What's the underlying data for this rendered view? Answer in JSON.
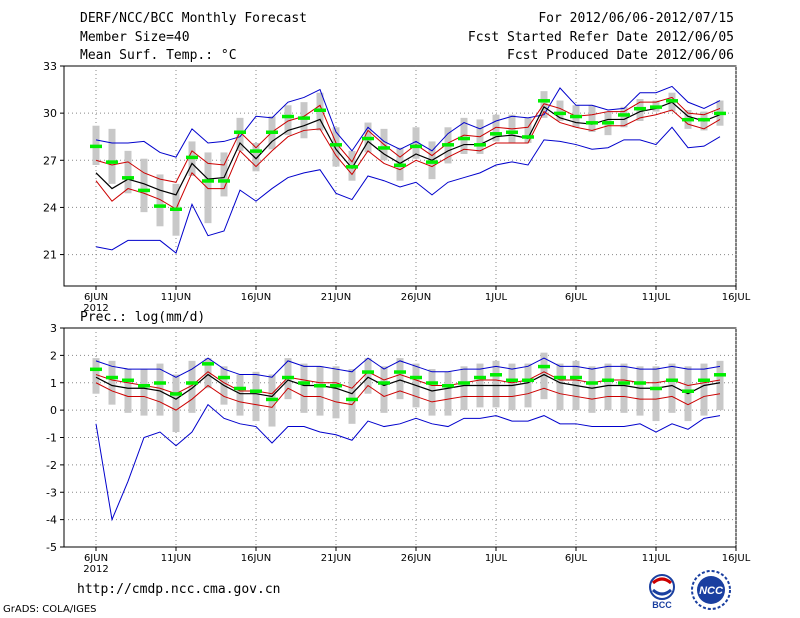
{
  "header": {
    "title": "DERF/NCC/BCC Monthly Forecast",
    "member_size": "Member Size=40",
    "variable": "Mean Surf. Temp.: °C",
    "period": "For 2012/06/06-2012/07/15",
    "refer_date": "Fcst Started Refer Date 2012/06/05",
    "produced_date": "Fcst Produced Date 2012/06/06"
  },
  "footer": {
    "url": "http://cmdp.ncc.cma.gov.cn",
    "grads": "GrADS: COLA/IGES",
    "logo_left_text": "BCC",
    "logo_right_text": "NCC"
  },
  "colors": {
    "envelope": "#0000cc",
    "spread": "#cc0000",
    "mean": "#000000",
    "median": "#00ee00",
    "box": "#c8c8c8"
  },
  "chart_data": [
    {
      "type": "line",
      "title": "Mean Surf. Temp.: °C",
      "ylim": [
        19,
        33
      ],
      "yticks": [
        21,
        24,
        27,
        30,
        33
      ],
      "grid": true,
      "x_tick_labels": [
        "6JUN",
        "11JUN",
        "16JUN",
        "21JUN",
        "26JUN",
        "1JUL",
        "6JUL",
        "11JUL",
        "16JUL"
      ],
      "x_year_label": "2012",
      "x": [
        1,
        2,
        3,
        4,
        5,
        6,
        7,
        8,
        9,
        10,
        11,
        12,
        13,
        14,
        15,
        16,
        17,
        18,
        19,
        20,
        21,
        22,
        23,
        24,
        25,
        26,
        27,
        28,
        29,
        30,
        31,
        32,
        33,
        34,
        35,
        36,
        37,
        38,
        39,
        40
      ],
      "series": [
        {
          "name": "max",
          "values": [
            28.3,
            28.1,
            28.1,
            28.2,
            27.5,
            27.2,
            29.0,
            28.1,
            28.2,
            28.5,
            29.8,
            29.7,
            30.7,
            31.0,
            31.5,
            28.8,
            27.6,
            29.1,
            28.2,
            27.7,
            28.2,
            27.6,
            28.7,
            29.4,
            29.0,
            29.5,
            29.8,
            29.7,
            29.9,
            31.6,
            30.5,
            30.5,
            30.2,
            30.3,
            31.3,
            31.3,
            31.7,
            30.7,
            30.3,
            30.8
          ]
        },
        {
          "name": "upper",
          "values": [
            27.0,
            26.7,
            26.9,
            26.2,
            25.8,
            25.6,
            27.6,
            26.8,
            26.7,
            28.8,
            27.8,
            28.8,
            29.5,
            29.8,
            30.5,
            28.1,
            26.9,
            28.9,
            28.0,
            27.2,
            28.0,
            27.3,
            28.1,
            28.6,
            28.5,
            29.1,
            29.0,
            29.1,
            30.6,
            30.3,
            29.8,
            29.9,
            30.1,
            30.1,
            30.7,
            30.7,
            31.0,
            30.0,
            29.9,
            30.3
          ]
        },
        {
          "name": "mean",
          "values": [
            26.2,
            25.2,
            25.8,
            25.5,
            25.1,
            24.8,
            26.8,
            25.8,
            25.9,
            28.1,
            27.1,
            28.2,
            28.9,
            29.2,
            29.6,
            27.7,
            26.5,
            28.2,
            27.4,
            26.8,
            27.4,
            27.0,
            27.6,
            28.0,
            28.0,
            28.5,
            28.6,
            28.4,
            30.4,
            29.7,
            29.4,
            29.3,
            29.6,
            29.6,
            30.1,
            30.3,
            30.7,
            29.8,
            29.5,
            29.9
          ]
        },
        {
          "name": "lower",
          "values": [
            25.7,
            24.4,
            25.2,
            24.9,
            24.5,
            23.9,
            26.2,
            25.2,
            25.2,
            27.6,
            26.6,
            27.6,
            28.5,
            28.9,
            29.0,
            27.3,
            26.1,
            27.6,
            26.8,
            26.4,
            27.0,
            26.6,
            27.2,
            27.7,
            27.6,
            28.1,
            28.1,
            28.1,
            30.1,
            29.4,
            29.1,
            28.9,
            29.2,
            29.2,
            29.7,
            29.9,
            30.2,
            29.3,
            29.0,
            29.6
          ]
        },
        {
          "name": "min",
          "values": [
            21.5,
            21.3,
            21.9,
            21.9,
            21.9,
            21.1,
            24.2,
            22.2,
            22.5,
            25.1,
            24.4,
            25.2,
            25.9,
            26.2,
            26.4,
            24.9,
            24.5,
            26.0,
            25.7,
            25.3,
            25.6,
            24.8,
            25.6,
            25.9,
            26.2,
            26.7,
            26.9,
            26.7,
            28.3,
            28.2,
            28.0,
            27.7,
            27.8,
            28.3,
            28.3,
            28.0,
            29.1,
            27.8,
            27.9,
            28.5
          ]
        },
        {
          "name": "median",
          "values": [
            27.9,
            26.9,
            25.9,
            25.1,
            24.1,
            23.9,
            27.2,
            25.7,
            25.7,
            28.8,
            27.6,
            28.8,
            29.8,
            29.7,
            30.2,
            28.0,
            26.6,
            28.4,
            27.8,
            26.7,
            27.9,
            26.9,
            28.0,
            28.4,
            28.0,
            28.7,
            28.8,
            28.5,
            30.8,
            30.0,
            29.8,
            29.4,
            29.4,
            29.9,
            30.3,
            30.4,
            30.8,
            29.6,
            29.6,
            30.0
          ]
        },
        {
          "name": "box_low",
          "values": [
            26.7,
            25.5,
            24.9,
            23.7,
            22.8,
            22.2,
            26.0,
            23.0,
            24.7,
            27.6,
            26.3,
            27.7,
            28.6,
            28.4,
            28.9,
            26.6,
            25.7,
            27.5,
            27.0,
            25.7,
            27.1,
            25.8,
            26.8,
            27.4,
            27.4,
            28.2,
            28.1,
            28.1,
            29.7,
            29.5,
            29.1,
            28.8,
            28.6,
            29.1,
            29.5,
            30.1,
            30.1,
            29.0,
            28.9,
            29.2
          ]
        },
        {
          "name": "box_high",
          "values": [
            29.2,
            29.0,
            27.6,
            27.1,
            26.1,
            25.5,
            28.2,
            27.5,
            27.5,
            29.7,
            28.1,
            29.8,
            30.5,
            30.7,
            31.3,
            29.1,
            27.6,
            29.4,
            29.0,
            27.8,
            29.1,
            28.2,
            29.1,
            29.7,
            29.6,
            29.9,
            29.9,
            29.7,
            31.4,
            30.8,
            30.5,
            30.5,
            30.1,
            30.4,
            30.9,
            30.8,
            31.3,
            30.2,
            30.1,
            30.8
          ]
        }
      ]
    },
    {
      "type": "line",
      "title": "Prec.: log(mm/d)",
      "ylim": [
        -5,
        3
      ],
      "yticks": [
        -5,
        -4,
        -3,
        -2,
        -1,
        0,
        1,
        2,
        3
      ],
      "grid": true,
      "x_tick_labels": [
        "6JUN",
        "11JUN",
        "16JUN",
        "21JUN",
        "26JUN",
        "1JUL",
        "6JUL",
        "11JUL",
        "16JUL"
      ],
      "x_year_label": "2012",
      "x": [
        1,
        2,
        3,
        4,
        5,
        6,
        7,
        8,
        9,
        10,
        11,
        12,
        13,
        14,
        15,
        16,
        17,
        18,
        19,
        20,
        21,
        22,
        23,
        24,
        25,
        26,
        27,
        28,
        29,
        30,
        31,
        32,
        33,
        34,
        35,
        36,
        37,
        38,
        39,
        40
      ],
      "series": [
        {
          "name": "max",
          "values": [
            1.8,
            1.6,
            1.5,
            1.5,
            1.5,
            1.2,
            1.5,
            1.9,
            1.5,
            1.3,
            1.3,
            1.2,
            1.8,
            1.6,
            1.6,
            1.5,
            1.4,
            1.9,
            1.5,
            1.8,
            1.6,
            1.4,
            1.4,
            1.5,
            1.5,
            1.6,
            1.5,
            1.6,
            1.9,
            1.6,
            1.6,
            1.5,
            1.6,
            1.6,
            1.5,
            1.5,
            1.6,
            1.5,
            1.5,
            1.6
          ]
        },
        {
          "name": "upper",
          "values": [
            1.3,
            1.1,
            1.0,
            0.9,
            0.8,
            0.6,
            0.9,
            1.4,
            1.0,
            0.7,
            0.7,
            0.6,
            1.2,
            1.1,
            1.0,
            1.0,
            0.8,
            1.4,
            1.1,
            1.3,
            1.1,
            0.9,
            0.9,
            1.0,
            1.1,
            1.1,
            1.0,
            1.1,
            1.4,
            1.1,
            1.1,
            1.0,
            1.1,
            1.1,
            1.0,
            1.0,
            1.1,
            0.9,
            1.0,
            1.1
          ]
        },
        {
          "name": "mean",
          "values": [
            1.2,
            0.9,
            0.8,
            0.8,
            0.7,
            0.4,
            0.8,
            1.3,
            0.9,
            0.6,
            0.6,
            0.5,
            1.1,
            0.9,
            0.9,
            0.8,
            0.6,
            1.2,
            0.9,
            1.1,
            0.9,
            0.7,
            0.8,
            0.9,
            0.9,
            0.9,
            0.9,
            1.0,
            1.3,
            1.0,
            0.9,
            0.8,
            0.9,
            0.9,
            0.8,
            0.8,
            0.9,
            0.6,
            0.9,
            1.0
          ]
        },
        {
          "name": "lower",
          "values": [
            1.0,
            0.7,
            0.5,
            0.5,
            0.3,
            0.0,
            0.4,
            0.9,
            0.5,
            0.3,
            0.2,
            0.1,
            0.8,
            0.5,
            0.5,
            0.3,
            0.2,
            0.9,
            0.5,
            0.7,
            0.5,
            0.3,
            0.4,
            0.5,
            0.5,
            0.5,
            0.5,
            0.6,
            0.8,
            0.6,
            0.5,
            0.4,
            0.5,
            0.5,
            0.4,
            0.4,
            0.5,
            0.2,
            0.5,
            0.6
          ]
        },
        {
          "name": "min",
          "values": [
            -0.5,
            -4.0,
            -2.6,
            -1.0,
            -0.8,
            -1.3,
            -0.8,
            0.2,
            -0.3,
            -0.5,
            -0.6,
            -1.2,
            -0.6,
            -0.6,
            -0.8,
            -0.9,
            -1.1,
            -0.4,
            -0.6,
            -0.5,
            -0.3,
            -0.5,
            -0.6,
            -0.3,
            -0.3,
            -0.2,
            -0.4,
            -0.4,
            -0.2,
            -0.5,
            -0.5,
            -0.6,
            -0.6,
            -0.6,
            -0.5,
            -0.8,
            -0.5,
            -0.7,
            -0.3,
            -0.2
          ]
        },
        {
          "name": "median",
          "values": [
            1.5,
            1.2,
            1.1,
            0.9,
            1.0,
            0.6,
            1.0,
            1.7,
            1.2,
            0.8,
            0.7,
            0.4,
            1.2,
            1.0,
            0.9,
            0.9,
            0.4,
            1.4,
            1.0,
            1.4,
            1.2,
            1.0,
            0.9,
            1.0,
            1.2,
            1.3,
            1.1,
            1.1,
            1.6,
            1.2,
            1.2,
            1.0,
            1.1,
            1.0,
            1.0,
            0.8,
            1.1,
            0.7,
            1.1,
            1.3
          ]
        },
        {
          "name": "box_low",
          "values": [
            0.6,
            0.2,
            -0.1,
            -0.2,
            -0.2,
            -0.8,
            -0.1,
            0.8,
            0.2,
            -0.2,
            -0.4,
            -0.6,
            0.4,
            -0.1,
            -0.2,
            -0.3,
            -0.5,
            0.6,
            -0.1,
            0.4,
            0.1,
            -0.2,
            -0.2,
            0.0,
            0.1,
            0.1,
            0.0,
            0.1,
            0.4,
            0.0,
            0.0,
            -0.1,
            0.0,
            -0.1,
            -0.2,
            -0.4,
            -0.1,
            -0.4,
            -0.2,
            0.0
          ]
        },
        {
          "name": "box_high",
          "values": [
            1.9,
            1.8,
            1.5,
            1.5,
            1.7,
            1.3,
            1.8,
            1.9,
            1.6,
            1.3,
            1.4,
            1.3,
            1.9,
            1.7,
            1.6,
            1.6,
            1.5,
            1.9,
            1.6,
            1.9,
            1.7,
            1.5,
            1.4,
            1.6,
            1.7,
            1.8,
            1.7,
            1.7,
            2.1,
            1.7,
            1.8,
            1.6,
            1.7,
            1.7,
            1.6,
            1.6,
            1.7,
            1.6,
            1.7,
            1.8
          ]
        }
      ]
    }
  ]
}
